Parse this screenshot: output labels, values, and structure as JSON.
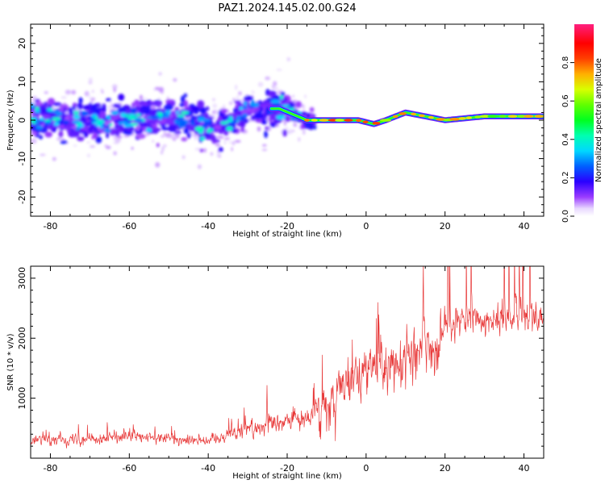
{
  "title": "PAZ1.2024.145.02.00.G24",
  "chart_data": [
    {
      "type": "heatmap",
      "xlabel": "Height of straight line (km)",
      "ylabel": "Frequency (Hz)",
      "xlim": [
        -85,
        45
      ],
      "ylim": [
        -25,
        25
      ],
      "xticks": [
        -80,
        -60,
        -40,
        -20,
        0,
        20,
        40
      ],
      "yticks": [
        -20,
        -10,
        0,
        10,
        20
      ],
      "colorbar": {
        "label": "Normalized spectral amplitude",
        "range": [
          0,
          1
        ],
        "ticks": [
          "0.0",
          "0.2",
          "0.4",
          "0.6",
          "0.8"
        ],
        "colormap": "gist_ncar-like (white, violet, blue, cyan, green, yellow, red, pink)"
      },
      "ridge": {
        "x": [
          -85,
          -75,
          -65,
          -55,
          -45,
          -38,
          -30,
          -22,
          -15,
          -8,
          -2,
          2,
          5,
          10,
          20,
          30,
          45
        ],
        "y": [
          1,
          0,
          0,
          1,
          0,
          -3,
          3,
          3,
          0,
          0,
          0,
          -1,
          0,
          2,
          0,
          1,
          1
        ],
        "peak_amplitude": [
          0.4,
          0.45,
          0.4,
          0.45,
          0.45,
          0.5,
          0.5,
          0.6,
          0.75,
          0.85,
          0.85,
          0.9,
          0.8,
          0.8,
          0.75,
          0.7,
          0.75
        ]
      }
    },
    {
      "type": "line",
      "xlabel": "Height of straight line (km)",
      "ylabel": "SNR (10 * v/v)",
      "xlim": [
        -85,
        45
      ],
      "ylim": [
        0,
        3200
      ],
      "xticks": [
        -80,
        -60,
        -40,
        -20,
        0,
        20,
        40
      ],
      "yticks": [
        1000,
        2000,
        3000
      ],
      "color": "#e83a3a",
      "trend": {
        "x": [
          -85,
          -60,
          -40,
          -30,
          -20,
          -15,
          -10,
          -5,
          0,
          5,
          10,
          15,
          20,
          30,
          45
        ],
        "y": [
          300,
          350,
          300,
          500,
          600,
          700,
          1000,
          1300,
          1500,
          1500,
          1700,
          1800,
          2200,
          2300,
          2400
        ]
      }
    }
  ]
}
